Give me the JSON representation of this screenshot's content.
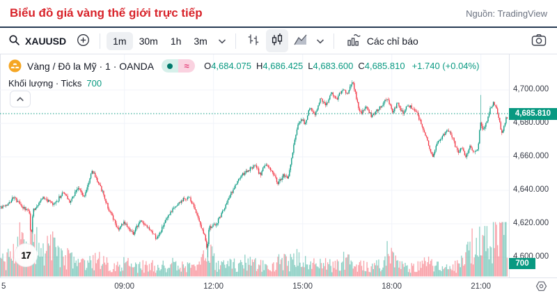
{
  "page": {
    "title": "Biểu đồ giá vàng thế giới trực tiếp",
    "source": "Nguồn: TradingView"
  },
  "toolbar": {
    "symbol": "XAUUSD",
    "intervals": [
      {
        "label": "1m",
        "active": true
      },
      {
        "label": "30m",
        "active": false
      },
      {
        "label": "1h",
        "active": false
      },
      {
        "label": "3m",
        "active": false
      }
    ],
    "indicators_label": "Các chỉ báo"
  },
  "legend": {
    "symbol_title": "Vàng / Đô la Mỹ · 1 · OANDA",
    "approx": "≈",
    "ohlc": [
      {
        "k": "O",
        "v": "4,684.075"
      },
      {
        "k": "H",
        "v": "4,686.425"
      },
      {
        "k": "L",
        "v": "4,683.600"
      },
      {
        "k": "C",
        "v": "4,685.810"
      }
    ],
    "change": "+1.740 (+0.04%)",
    "volume_label": "Khối lượng · Ticks",
    "volume_value": "700"
  },
  "axes": {
    "last_price_text": "4,685.810",
    "edge_time_label": "5"
  },
  "chart_data": {
    "type": "candlestick",
    "title": "Vàng / Đô la Mỹ · 1 · OANDA",
    "symbol": "XAUUSD",
    "exchange": "OANDA",
    "interval": "1m",
    "open": 4684.075,
    "high": 4686.425,
    "low": 4683.6,
    "close": 4685.81,
    "change": 1.74,
    "change_pct": 0.04,
    "last_volume": 700,
    "volume_study": "Khối lượng · Ticks",
    "colors": {
      "up": "#089981",
      "down": "#f23645",
      "grid": "#f0f3fa",
      "axis_border": "#e0e3eb",
      "last_line": "#089981"
    },
    "y_axis": {
      "min": 4588,
      "max": 4712,
      "ticks": [
        {
          "label": "4,700.000",
          "value": 4700
        },
        {
          "label": "4,680.000",
          "value": 4680
        },
        {
          "label": "4,660.000",
          "value": 4660
        },
        {
          "label": "4,640.000",
          "value": 4640
        },
        {
          "label": "4,620.000",
          "value": 4620
        },
        {
          "label": "4,600.000",
          "value": 4600
        }
      ]
    },
    "x_axis": {
      "start_minute_label": "5",
      "ticks": [
        {
          "label": "09:00",
          "m": 240
        },
        {
          "label": "12:00",
          "m": 420
        },
        {
          "label": "15:00",
          "m": 600
        },
        {
          "label": "18:00",
          "m": 780
        },
        {
          "label": "21:00",
          "m": 960
        }
      ]
    },
    "price_path": [
      [
        0,
        4630
      ],
      [
        17,
        4636
      ],
      [
        38,
        4629
      ],
      [
        50,
        4627
      ],
      [
        52,
        4606
      ],
      [
        55,
        4627
      ],
      [
        76,
        4636
      ],
      [
        98,
        4631
      ],
      [
        118,
        4639
      ],
      [
        132,
        4633
      ],
      [
        146,
        4642
      ],
      [
        160,
        4636
      ],
      [
        176,
        4652
      ],
      [
        193,
        4642
      ],
      [
        210,
        4628
      ],
      [
        228,
        4617
      ],
      [
        242,
        4621
      ],
      [
        259,
        4614
      ],
      [
        273,
        4622
      ],
      [
        292,
        4616
      ],
      [
        307,
        4611
      ],
      [
        323,
        4621
      ],
      [
        340,
        4629
      ],
      [
        357,
        4634
      ],
      [
        371,
        4636
      ],
      [
        385,
        4628
      ],
      [
        399,
        4616
      ],
      [
        405,
        4612
      ],
      [
        408,
        4604
      ],
      [
        412,
        4618
      ],
      [
        427,
        4620
      ],
      [
        442,
        4629
      ],
      [
        458,
        4639
      ],
      [
        475,
        4648
      ],
      [
        492,
        4652
      ],
      [
        506,
        4655
      ],
      [
        515,
        4649
      ],
      [
        526,
        4656
      ],
      [
        540,
        4651
      ],
      [
        551,
        4644
      ],
      [
        562,
        4649
      ],
      [
        571,
        4647
      ],
      [
        579,
        4660
      ],
      [
        589,
        4676
      ],
      [
        598,
        4684
      ],
      [
        606,
        4679
      ],
      [
        616,
        4690
      ],
      [
        626,
        4685
      ],
      [
        637,
        4695
      ],
      [
        648,
        4691
      ],
      [
        660,
        4698
      ],
      [
        669,
        4694
      ],
      [
        681,
        4701
      ],
      [
        692,
        4698
      ],
      [
        702,
        4706
      ],
      [
        712,
        4691
      ],
      [
        720,
        4686
      ],
      [
        730,
        4690
      ],
      [
        740,
        4684
      ],
      [
        751,
        4688
      ],
      [
        762,
        4691
      ],
      [
        772,
        4696
      ],
      [
        782,
        4687
      ],
      [
        793,
        4692
      ],
      [
        804,
        4686
      ],
      [
        814,
        4691
      ],
      [
        824,
        4689
      ],
      [
        834,
        4685
      ],
      [
        844,
        4676
      ],
      [
        854,
        4669
      ],
      [
        863,
        4660
      ],
      [
        875,
        4669
      ],
      [
        886,
        4673
      ],
      [
        896,
        4676
      ],
      [
        906,
        4670
      ],
      [
        914,
        4662
      ],
      [
        922,
        4666
      ],
      [
        931,
        4660
      ],
      [
        939,
        4667
      ],
      [
        948,
        4662
      ],
      [
        956,
        4666
      ],
      [
        960,
        4684
      ],
      [
        963,
        4676
      ],
      [
        970,
        4678
      ],
      [
        979,
        4688
      ],
      [
        987,
        4693
      ],
      [
        996,
        4685
      ],
      [
        1004,
        4673
      ],
      [
        1011,
        4682
      ],
      [
        1017,
        4685.8
      ]
    ],
    "wick_spikes": [
      {
        "m": 52,
        "low": 4601
      },
      {
        "m": 408,
        "low": 4600
      },
      {
        "m": 960,
        "high": 4697
      }
    ],
    "volume_path": [
      [
        0,
        22
      ],
      [
        15,
        38
      ],
      [
        30,
        48
      ],
      [
        52,
        55
      ],
      [
        70,
        36
      ],
      [
        90,
        42
      ],
      [
        110,
        32
      ],
      [
        130,
        26
      ],
      [
        160,
        16
      ],
      [
        190,
        26
      ],
      [
        210,
        14
      ],
      [
        240,
        20
      ],
      [
        260,
        12
      ],
      [
        290,
        16
      ],
      [
        310,
        14
      ],
      [
        340,
        18
      ],
      [
        370,
        12
      ],
      [
        399,
        22
      ],
      [
        408,
        36
      ],
      [
        430,
        14
      ],
      [
        460,
        16
      ],
      [
        490,
        20
      ],
      [
        520,
        14
      ],
      [
        551,
        22
      ],
      [
        571,
        18
      ],
      [
        589,
        26
      ],
      [
        610,
        16
      ],
      [
        640,
        18
      ],
      [
        660,
        14
      ],
      [
        681,
        22
      ],
      [
        702,
        18
      ],
      [
        730,
        13
      ],
      [
        762,
        16
      ],
      [
        772,
        44
      ],
      [
        790,
        15
      ],
      [
        814,
        13
      ],
      [
        834,
        16
      ],
      [
        854,
        20
      ],
      [
        875,
        13
      ],
      [
        896,
        12
      ],
      [
        914,
        15
      ],
      [
        931,
        30
      ],
      [
        940,
        44
      ],
      [
        950,
        38
      ],
      [
        962,
        52
      ],
      [
        970,
        46
      ],
      [
        979,
        40
      ],
      [
        987,
        58
      ],
      [
        996,
        70
      ],
      [
        1004,
        52
      ],
      [
        1011,
        62
      ],
      [
        1017,
        28
      ]
    ]
  }
}
